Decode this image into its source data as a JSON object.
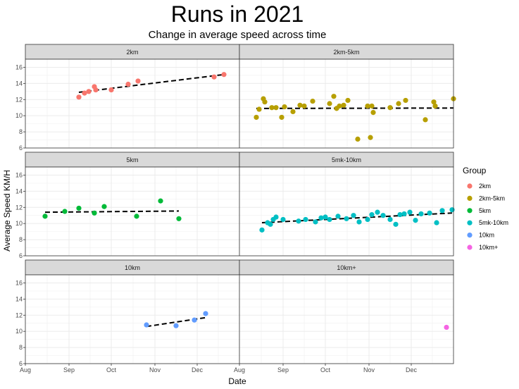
{
  "chart_data": {
    "type": "scatter",
    "title": "Runs in 2021",
    "subtitle": "Change in average speed across time",
    "xlabel": "Date",
    "ylabel": "Average Speed KM/H",
    "ylim": [
      6,
      17
    ],
    "y_ticks": [
      6,
      8,
      10,
      12,
      14,
      16
    ],
    "xlim": [
      "2021-08-01",
      "2021-12-31"
    ],
    "x_ticks": [
      {
        "date": "2021-08-01",
        "label": "Aug"
      },
      {
        "date": "2021-09-01",
        "label": "Sep"
      },
      {
        "date": "2021-10-01",
        "label": "Oct"
      },
      {
        "date": "2021-11-01",
        "label": "Nov"
      },
      {
        "date": "2021-12-01",
        "label": "Dec"
      }
    ],
    "grid": true,
    "facet_layout": "3 rows x 2 columns",
    "legend": {
      "title": "Group",
      "position": "right"
    },
    "trend_line_style": "black dashed linear fit",
    "series": [
      {
        "name": "2km",
        "color": "#F8766D",
        "trend": [
          12.9,
          15.1
        ],
        "points": [
          [
            "2021-09-08",
            12.3
          ],
          [
            "2021-09-12",
            12.8
          ],
          [
            "2021-09-15",
            13.0
          ],
          [
            "2021-09-19",
            13.6
          ],
          [
            "2021-09-20",
            13.2
          ],
          [
            "2021-10-01",
            13.2
          ],
          [
            "2021-10-13",
            13.9
          ],
          [
            "2021-10-20",
            14.3
          ],
          [
            "2021-12-13",
            14.8
          ],
          [
            "2021-12-20",
            15.1
          ]
        ]
      },
      {
        "name": "2km-5km",
        "color": "#B79F00",
        "trend": [
          10.9,
          10.95
        ],
        "points": [
          [
            "2021-08-13",
            9.8
          ],
          [
            "2021-08-15",
            10.8
          ],
          [
            "2021-08-18",
            12.1
          ],
          [
            "2021-08-19",
            11.7
          ],
          [
            "2021-08-24",
            11.0
          ],
          [
            "2021-08-27",
            11.0
          ],
          [
            "2021-08-31",
            9.8
          ],
          [
            "2021-09-02",
            11.1
          ],
          [
            "2021-09-08",
            10.5
          ],
          [
            "2021-09-13",
            11.3
          ],
          [
            "2021-09-16",
            11.2
          ],
          [
            "2021-09-22",
            11.8
          ],
          [
            "2021-10-04",
            11.5
          ],
          [
            "2021-10-07",
            12.4
          ],
          [
            "2021-10-09",
            10.9
          ],
          [
            "2021-10-11",
            11.2
          ],
          [
            "2021-10-14",
            11.3
          ],
          [
            "2021-10-17",
            11.9
          ],
          [
            "2021-10-24",
            7.1
          ],
          [
            "2021-10-31",
            11.2
          ],
          [
            "2021-11-02",
            7.3
          ],
          [
            "2021-11-03",
            11.2
          ],
          [
            "2021-11-04",
            10.4
          ],
          [
            "2021-11-16",
            11.0
          ],
          [
            "2021-11-22",
            11.5
          ],
          [
            "2021-11-27",
            11.9
          ],
          [
            "2021-12-11",
            9.5
          ],
          [
            "2021-12-17",
            11.7
          ],
          [
            "2021-12-18",
            11.2
          ],
          [
            "2021-12-31",
            12.1
          ]
        ]
      },
      {
        "name": "5km",
        "color": "#00BA38",
        "trend": [
          11.4,
          11.55
        ],
        "points": [
          [
            "2021-08-15",
            10.9
          ],
          [
            "2021-08-29",
            11.5
          ],
          [
            "2021-09-08",
            11.9
          ],
          [
            "2021-09-19",
            11.3
          ],
          [
            "2021-09-26",
            12.1
          ],
          [
            "2021-10-19",
            10.9
          ],
          [
            "2021-11-05",
            12.8
          ],
          [
            "2021-11-18",
            10.6
          ]
        ]
      },
      {
        "name": "5mk-10km",
        "color": "#00BFC4",
        "trend": [
          10.1,
          11.3
        ],
        "points": [
          [
            "2021-08-17",
            9.2
          ],
          [
            "2021-08-21",
            10.1
          ],
          [
            "2021-08-23",
            9.9
          ],
          [
            "2021-08-25",
            10.5
          ],
          [
            "2021-08-27",
            10.8
          ],
          [
            "2021-09-01",
            10.5
          ],
          [
            "2021-09-12",
            10.3
          ],
          [
            "2021-09-17",
            10.5
          ],
          [
            "2021-09-24",
            10.2
          ],
          [
            "2021-09-28",
            10.7
          ],
          [
            "2021-10-01",
            10.8
          ],
          [
            "2021-10-04",
            10.5
          ],
          [
            "2021-10-10",
            10.9
          ],
          [
            "2021-10-16",
            10.6
          ],
          [
            "2021-10-21",
            11.0
          ],
          [
            "2021-10-25",
            10.2
          ],
          [
            "2021-10-31",
            10.5
          ],
          [
            "2021-11-03",
            11.1
          ],
          [
            "2021-11-07",
            11.4
          ],
          [
            "2021-11-11",
            11.0
          ],
          [
            "2021-11-16",
            10.5
          ],
          [
            "2021-11-20",
            9.9
          ],
          [
            "2021-11-23",
            11.1
          ],
          [
            "2021-11-26",
            11.2
          ],
          [
            "2021-11-30",
            11.4
          ],
          [
            "2021-12-04",
            10.4
          ],
          [
            "2021-12-08",
            11.2
          ],
          [
            "2021-12-14",
            11.3
          ],
          [
            "2021-12-19",
            10.1
          ],
          [
            "2021-12-23",
            11.6
          ],
          [
            "2021-12-30",
            11.7
          ]
        ]
      },
      {
        "name": "10km",
        "color": "#619CFF",
        "trend": [
          10.6,
          11.7
        ],
        "points": [
          [
            "2021-10-26",
            10.8
          ],
          [
            "2021-11-16",
            10.7
          ],
          [
            "2021-11-29",
            11.4
          ],
          [
            "2021-12-07",
            12.2
          ]
        ]
      },
      {
        "name": "10km+",
        "color": "#F564E3",
        "trend": null,
        "points": [
          [
            "2021-12-26",
            10.5
          ]
        ]
      }
    ]
  }
}
